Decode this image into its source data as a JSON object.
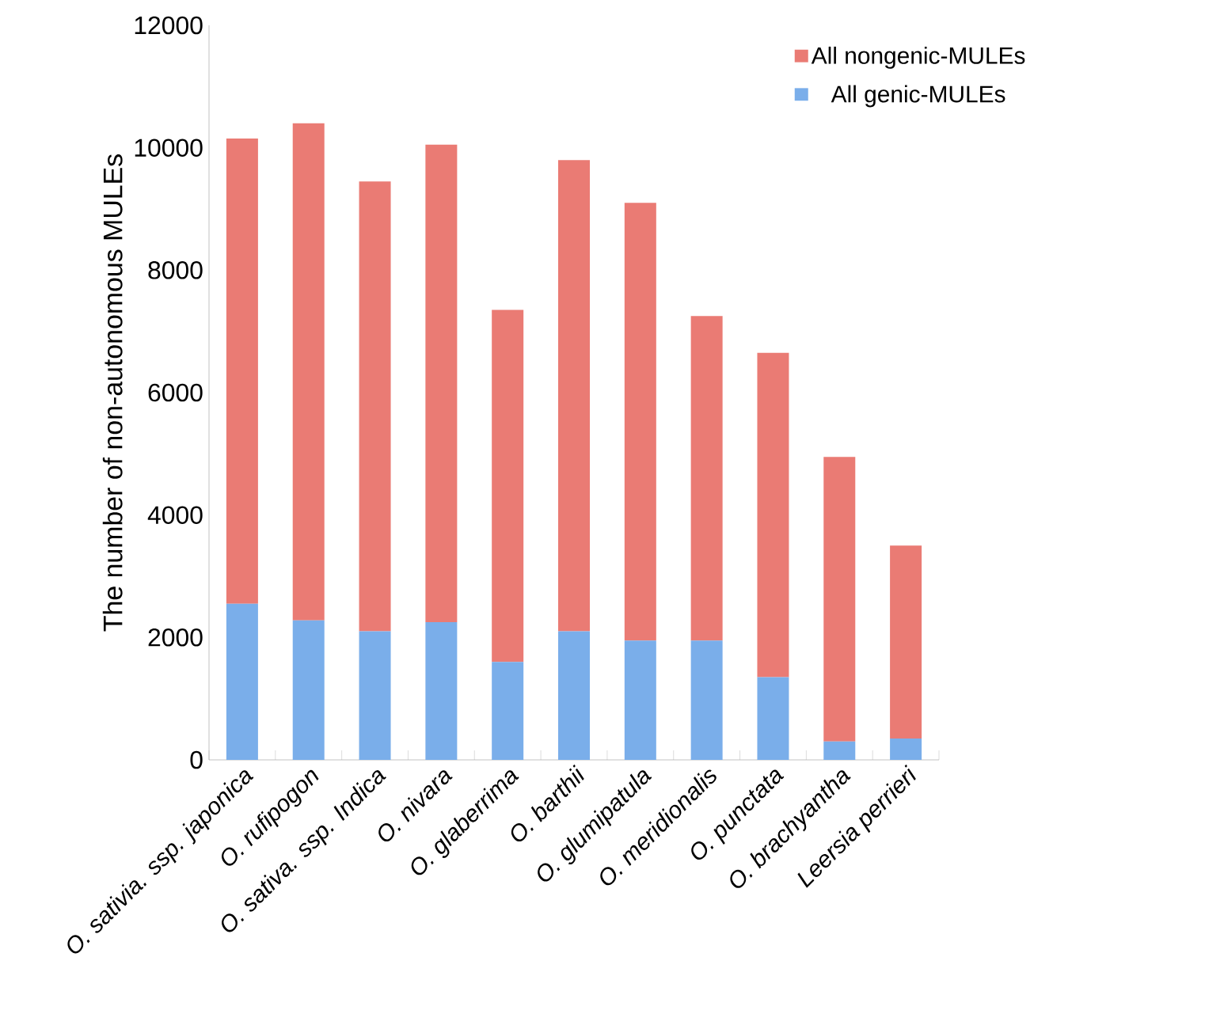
{
  "chart_data": {
    "type": "bar",
    "stacked": true,
    "ylabel": "The number of non-autonomous MULEs",
    "categories": [
      "O. sativia. ssp. japonica",
      "O. rufipogon",
      "O. sativa. ssp. Indica",
      "O. nivara",
      "O. glaberrima",
      "O. barthii",
      "O. glumipatula",
      "O. meridionalis",
      "O. punctata",
      "O. brachyantha",
      "Leersia perrieri"
    ],
    "series": [
      {
        "name": "All genic-MULEs",
        "color": "#7aaeea",
        "values": [
          2550,
          2280,
          2100,
          2250,
          1600,
          2100,
          1950,
          1950,
          1350,
          300,
          350
        ]
      },
      {
        "name": "All nongenic-MULEs",
        "color": "#ea7b74",
        "values": [
          7600,
          8120,
          7350,
          7800,
          5750,
          7700,
          7150,
          5300,
          5300,
          4650,
          3150
        ]
      }
    ],
    "ylim": [
      0,
      12000
    ],
    "yticks": [
      0,
      2000,
      4000,
      6000,
      8000,
      10000,
      12000
    ],
    "grid": false,
    "legend": "top right"
  }
}
